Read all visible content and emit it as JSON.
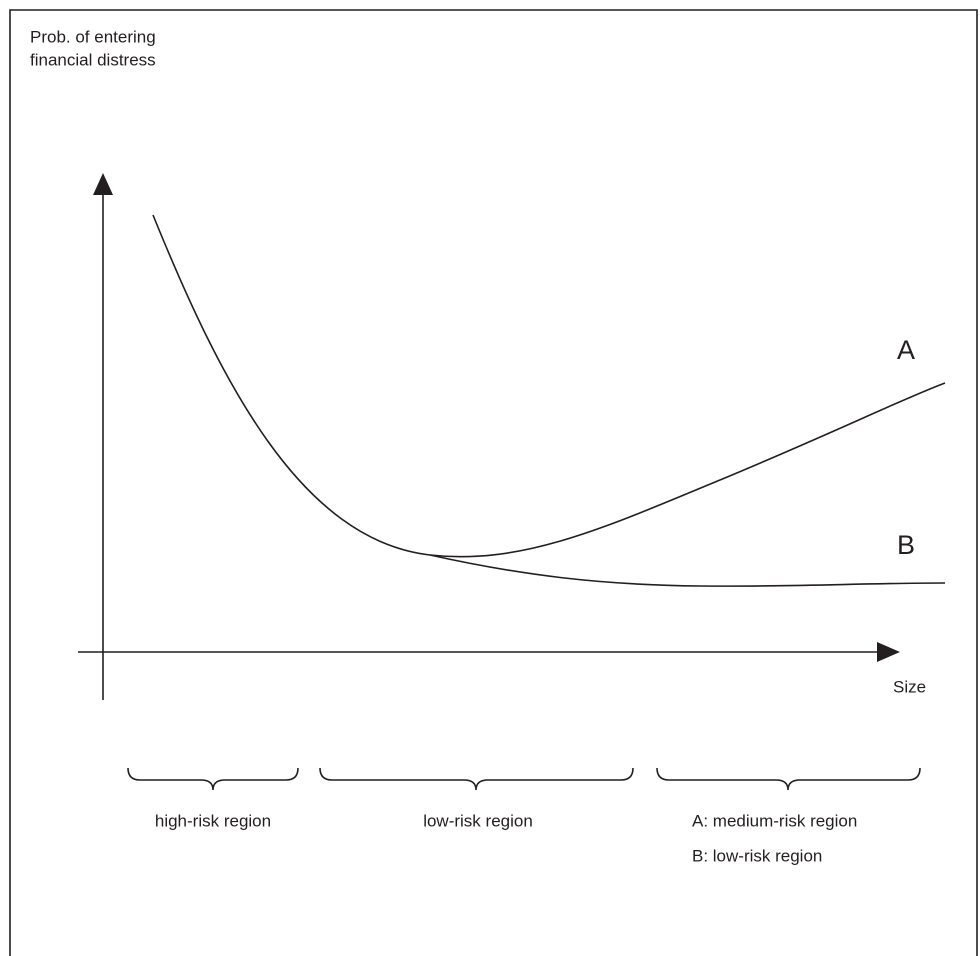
{
  "axes": {
    "y_label": [
      "Prob. of entering",
      "financial distress"
    ],
    "x_label": "Size"
  },
  "curves": [
    {
      "label": "A"
    },
    {
      "label": "B"
    }
  ],
  "regions": [
    {
      "labels": [
        "high-risk region"
      ]
    },
    {
      "labels": [
        "low-risk region"
      ]
    },
    {
      "labels": [
        "A: medium-risk region",
        "B: low-risk region"
      ]
    }
  ]
}
